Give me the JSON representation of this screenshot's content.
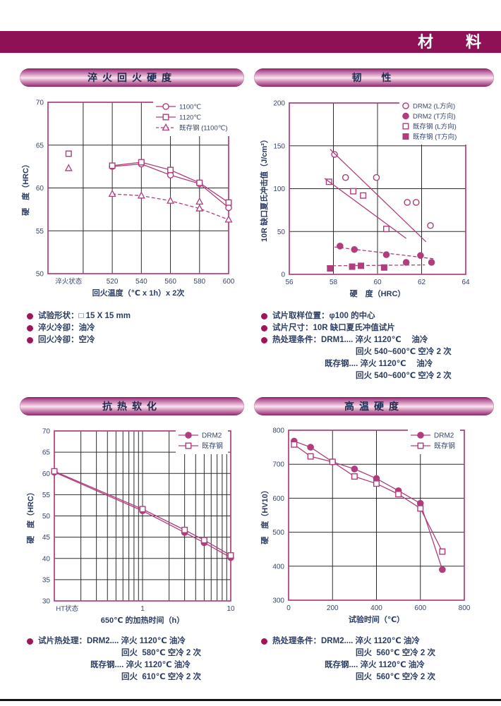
{
  "page": {
    "header_title": "材　料"
  },
  "style": {
    "accent": "#b13c7e",
    "band": "#8e1155",
    "bullet": "#9e1559",
    "grid": "#2b2b2b",
    "tick_text": "#35456b",
    "label_text": "#2c3d63"
  },
  "sections": [
    {
      "title": "淬火回火硬度",
      "notes": [
        {
          "b": 1,
          "lv": 0,
          "t": "试验形状：□ 15 X 15 mm"
        },
        {
          "b": 1,
          "lv": 0,
          "t": "淬火冷卻：油冷"
        },
        {
          "b": 1,
          "lv": 0,
          "t": "回火冷卻：空冷"
        }
      ]
    },
    {
      "title": "韧　性",
      "notes": [
        {
          "b": 1,
          "lv": 0,
          "t": "试片取样位置：φ100 的中心"
        },
        {
          "b": 1,
          "lv": 0,
          "t": "试片尺寸：10R 缺口夏氏冲值试片"
        },
        {
          "b": 1,
          "lv": 0,
          "t": "热处理条件：DRM1.... 淬火 1120℃　 油冷"
        },
        {
          "b": 0,
          "lv": 2,
          "t": "回火 540~600℃ 空冷 2 次"
        },
        {
          "b": 0,
          "lv": 1,
          "t": "既存钢.... 淬火 1120℃　 油冷"
        },
        {
          "b": 0,
          "lv": 2,
          "t": "回火 540~600℃ 空冷 2 次"
        }
      ]
    },
    {
      "title": "抗热软化",
      "notes": [
        {
          "b": 1,
          "lv": 0,
          "t": "试片热处理：DRM2.... 淬火 1120℃ 油冷"
        },
        {
          "b": 0,
          "lv": 2,
          "t": "回火  580℃ 空冷 2 次"
        },
        {
          "b": 0,
          "lv": 1,
          "t": "既存钢.... 淬火 1120℃ 油冷"
        },
        {
          "b": 0,
          "lv": 2,
          "t": "回火  610℃ 空冷 2 次"
        }
      ]
    },
    {
      "title": "高温硬度",
      "notes": [
        {
          "b": 1,
          "lv": 0,
          "t": "热处理条件：DRM2.... 淬火 1120℃ 油冷"
        },
        {
          "b": 0,
          "lv": 2,
          "t": "回火  560℃ 空冷 2 次"
        },
        {
          "b": 0,
          "lv": 1,
          "t": "既存钢.... 淬火 1120℃ 油冷"
        },
        {
          "b": 0,
          "lv": 2,
          "t": "回火  560℃ 空冷 2 次"
        }
      ]
    }
  ],
  "chart_data": [
    {
      "type": "line",
      "title": "淬火回火硬度",
      "xlabel": "回火温度（℃ x 1h）x 2次",
      "ylabel": "硬　度（HRC）",
      "x_log": false,
      "xlim": [
        475.8,
        600
      ],
      "ylim": [
        50,
        70
      ],
      "xticks": [
        {
          "v": 520,
          "label": "520"
        },
        {
          "v": 540,
          "label": "540"
        },
        {
          "v": 560,
          "label": "560"
        },
        {
          "v": 580,
          "label": "580"
        },
        {
          "v": 600,
          "label": "600"
        }
      ],
      "x_special": {
        "v": 490,
        "label": "淬火状态"
      },
      "yticks": [
        {
          "v": 50,
          "label": "50"
        },
        {
          "v": 55,
          "label": "55"
        },
        {
          "v": 60,
          "label": "60"
        },
        {
          "v": 65,
          "label": "65"
        },
        {
          "v": 70,
          "label": "70"
        }
      ],
      "grid_x": [
        500,
        520,
        540,
        560,
        580
      ],
      "grid_y": [
        55,
        60,
        65
      ],
      "legend": [
        {
          "label": "1100℃",
          "marker": "circle",
          "filled": false,
          "dashed": false,
          "seg": true
        },
        {
          "label": "1120℃",
          "marker": "square",
          "filled": false,
          "dashed": false,
          "seg": true
        },
        {
          "label": "既存钢 (1100℃)",
          "marker": "triangle",
          "filled": false,
          "dashed": true,
          "seg": true
        }
      ],
      "series": [
        {
          "name": "1100℃",
          "marker": "circle",
          "filled": false,
          "line": true,
          "dashed": false,
          "x": [
            520,
            540,
            560,
            580,
            600
          ],
          "y": [
            62.5,
            62.8,
            61.5,
            60.5,
            57.7
          ]
        },
        {
          "name": "1120℃",
          "marker": "square",
          "filled": false,
          "line": true,
          "dashed": false,
          "x": [
            520,
            540,
            560,
            580,
            600
          ],
          "y": [
            62.6,
            63.0,
            62.1,
            60.6,
            58.3
          ]
        },
        {
          "name": "既存钢 (1100℃)",
          "marker": "triangle",
          "filled": false,
          "line": true,
          "dashed": true,
          "x": [
            520,
            540,
            560,
            580,
            600
          ],
          "y": [
            59.3,
            59.1,
            58.5,
            57.6,
            56.3
          ]
        },
        {
          "name": "1120℃ 淬火状态",
          "marker": "square",
          "filled": false,
          "line": false,
          "x": [
            490
          ],
          "y": [
            64.0
          ]
        },
        {
          "name": "既存钢 淬火状态",
          "marker": "triangle",
          "filled": false,
          "line": false,
          "x": [
            490
          ],
          "y": [
            62.3
          ]
        },
        {
          "name": "既存钢 580℃ 散点",
          "marker": "triangle",
          "filled": false,
          "line": false,
          "x": [
            580
          ],
          "y": [
            58.4
          ]
        }
      ]
    },
    {
      "type": "scatter",
      "title": "韧性",
      "xlabel": "硬　度（HRC）",
      "ylabel": "10R 缺口夏氏冲击值（J/cm²）",
      "x_log": false,
      "xlim": [
        56,
        64
      ],
      "ylim": [
        0,
        200
      ],
      "xticks": [
        {
          "v": 56,
          "label": "56"
        },
        {
          "v": 58,
          "label": "58"
        },
        {
          "v": 60,
          "label": "60"
        },
        {
          "v": 62,
          "label": "62"
        },
        {
          "v": 64,
          "label": "64"
        }
      ],
      "yticks": [
        {
          "v": 0,
          "label": "0"
        },
        {
          "v": 50,
          "label": "50"
        },
        {
          "v": 100,
          "label": "100"
        },
        {
          "v": 150,
          "label": "150"
        },
        {
          "v": 200,
          "label": "200"
        }
      ],
      "grid_x": [
        58,
        60,
        62
      ],
      "grid_y": [
        50,
        100,
        150
      ],
      "legend": [
        {
          "label": "DRM2 (L方向)",
          "marker": "circle",
          "filled": false,
          "dashed": false,
          "seg": false
        },
        {
          "label": "DRM2 (T方向)",
          "marker": "circle",
          "filled": true,
          "dashed": false,
          "seg": false
        },
        {
          "label": "既存钢 (L方向)",
          "marker": "square",
          "filled": false,
          "dashed": false,
          "seg": false
        },
        {
          "label": "既存钢 (T方向)",
          "marker": "square",
          "filled": true,
          "dashed": false,
          "seg": false
        }
      ],
      "series": [
        {
          "name": "DRM2 (L方向)",
          "marker": "circle",
          "filled": false,
          "line": false,
          "x": [
            58.05,
            58.55,
            59.95,
            61.35,
            61.75,
            62.4
          ],
          "y": [
            140,
            113,
            113,
            84,
            84,
            57
          ]
        },
        {
          "name": "DRM2 (L方向) 趋势线",
          "marker": "none",
          "line": true,
          "dashed": false,
          "x": [
            57.85,
            62.2
          ],
          "y": [
            146,
            38
          ]
        },
        {
          "name": "既存钢 (L方向)",
          "marker": "square",
          "filled": false,
          "line": false,
          "x": [
            57.8,
            58.9,
            59.35,
            60.4
          ],
          "y": [
            108,
            97,
            92,
            53
          ]
        },
        {
          "name": "既存钢 (L方向) 趋势线",
          "marker": "none",
          "line": true,
          "dashed": false,
          "x": [
            57.6,
            61.3
          ],
          "y": [
            112,
            42
          ]
        },
        {
          "name": "DRM2 (T方向)",
          "marker": "circle",
          "filled": true,
          "line": false,
          "x": [
            58.3,
            58.95,
            60.4,
            61.3,
            61.95,
            62.45
          ],
          "y": [
            33,
            29,
            23,
            14,
            22,
            14
          ]
        },
        {
          "name": "DRM2 (T方向) 趋势线",
          "marker": "none",
          "line": true,
          "dashed": true,
          "x": [
            58.05,
            62.6
          ],
          "y": [
            32,
            18
          ]
        },
        {
          "name": "既存钢 (T方向)",
          "marker": "square",
          "filled": true,
          "line": false,
          "x": [
            57.85,
            58.85,
            59.25,
            60.3
          ],
          "y": [
            7,
            9,
            10,
            8
          ]
        },
        {
          "name": "既存钢 (T方向) 趋势线",
          "marker": "none",
          "line": true,
          "dashed": true,
          "x": [
            57.7,
            62.15
          ],
          "y": [
            10,
            11
          ]
        }
      ]
    },
    {
      "type": "line",
      "title": "抗热软化",
      "xlabel": "650℃ 的加热时间（h）",
      "ylabel": "硬　度（HRC）",
      "x_log": true,
      "xlim": [
        0.1,
        10
      ],
      "ylim": [
        30,
        70
      ],
      "xticks": [
        {
          "v": 1,
          "label": "1"
        },
        {
          "v": 10,
          "label": "10"
        }
      ],
      "x_special": {
        "v": 0.14,
        "label": "HT状态"
      },
      "yticks": [
        {
          "v": 30,
          "label": "30"
        },
        {
          "v": 35,
          "label": "35"
        },
        {
          "v": 40,
          "label": "40"
        },
        {
          "v": 45,
          "label": "45"
        },
        {
          "v": 50,
          "label": "50"
        },
        {
          "v": 55,
          "label": "55"
        },
        {
          "v": 60,
          "label": "60"
        },
        {
          "v": 65,
          "label": "65"
        },
        {
          "v": 70,
          "label": "70"
        }
      ],
      "grid_x": [
        0.2,
        0.3,
        0.4,
        0.5,
        0.6,
        0.7,
        0.8,
        0.9,
        1,
        2,
        3,
        4,
        5,
        6,
        7,
        8,
        9
      ],
      "grid_y": [
        35,
        40,
        45,
        50,
        55,
        60,
        65
      ],
      "legend": [
        {
          "label": "DRM2",
          "marker": "circle",
          "filled": true,
          "dashed": false,
          "seg": true
        },
        {
          "label": "既存钢",
          "marker": "square",
          "filled": false,
          "dashed": false,
          "seg": true
        }
      ],
      "series": [
        {
          "name": "DRM2",
          "marker": "circle",
          "filled": true,
          "line": true,
          "dashed": false,
          "x": [
            0.1,
            1,
            3,
            5,
            10
          ],
          "y": [
            60.3,
            51.2,
            46.1,
            43.7,
            40.2
          ]
        },
        {
          "name": "既存钢",
          "marker": "square",
          "filled": false,
          "line": true,
          "dashed": false,
          "x": [
            0.1,
            1,
            3,
            5,
            10
          ],
          "y": [
            60.5,
            51.6,
            46.7,
            44.3,
            40.7
          ]
        }
      ]
    },
    {
      "type": "line",
      "title": "高温硬度",
      "xlabel": "试验时间（℃）",
      "ylabel": "硬　度（HV10）",
      "x_log": false,
      "xlim": [
        0,
        800
      ],
      "ylim": [
        300,
        800
      ],
      "xticks": [
        {
          "v": 0,
          "label": "0"
        },
        {
          "v": 200,
          "label": "200"
        },
        {
          "v": 400,
          "label": "400"
        },
        {
          "v": 600,
          "label": "600"
        },
        {
          "v": 800,
          "label": "800"
        }
      ],
      "yticks": [
        {
          "v": 300,
          "label": "300"
        },
        {
          "v": 400,
          "label": "400"
        },
        {
          "v": 500,
          "label": "500"
        },
        {
          "v": 600,
          "label": "600"
        },
        {
          "v": 700,
          "label": "700"
        },
        {
          "v": 800,
          "label": "800"
        }
      ],
      "grid_x": [
        200,
        400,
        600
      ],
      "grid_y": [
        400,
        500,
        600,
        700
      ],
      "legend": [
        {
          "label": "DRM2",
          "marker": "circle",
          "filled": true,
          "dashed": false,
          "seg": true
        },
        {
          "label": "既存钢",
          "marker": "square",
          "filled": false,
          "dashed": false,
          "seg": true
        }
      ],
      "series": [
        {
          "name": "DRM2",
          "marker": "circle",
          "filled": true,
          "line": true,
          "dashed": false,
          "x": [
            25,
            100,
            200,
            300,
            400,
            500,
            600,
            700
          ],
          "y": [
            768,
            750,
            707,
            686,
            658,
            622,
            585,
            390
          ]
        },
        {
          "name": "既存钢",
          "marker": "square",
          "filled": false,
          "line": true,
          "dashed": false,
          "x": [
            25,
            100,
            200,
            300,
            400,
            500,
            600,
            700
          ],
          "y": [
            758,
            723,
            707,
            664,
            643,
            612,
            570,
            443
          ]
        }
      ]
    }
  ]
}
